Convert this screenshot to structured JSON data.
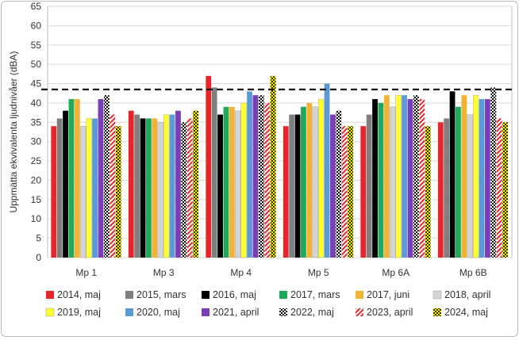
{
  "chart_data": {
    "type": "bar",
    "title": "",
    "xlabel": "",
    "ylabel": "Uppmätta ekvivalenta ljudnivåer (dBA)",
    "ylim": [
      0,
      65
    ],
    "yticks": [
      0,
      5,
      10,
      15,
      20,
      25,
      30,
      35,
      40,
      45,
      50,
      55,
      60,
      65
    ],
    "grid": true,
    "legend_position": "bottom",
    "categories": [
      "Mp 1",
      "Mp 3",
      "Mp 4",
      "Mp 5",
      "Mp 6A",
      "Mp 6B"
    ],
    "reference_line": 43.5,
    "series": [
      {
        "name": "2014, maj",
        "color": "#e8252b",
        "pattern": "solid",
        "values": [
          34,
          38,
          47,
          34,
          34,
          35
        ]
      },
      {
        "name": "2015, mars",
        "color": "#7f7f7f",
        "pattern": "solid",
        "values": [
          36,
          37,
          44,
          37,
          37,
          36
        ]
      },
      {
        "name": "2016, maj",
        "color": "#000000",
        "pattern": "solid",
        "values": [
          38,
          36,
          37,
          37,
          41,
          43
        ]
      },
      {
        "name": "2017, mars",
        "color": "#1fa95a",
        "pattern": "solid",
        "values": [
          41,
          36,
          39,
          39,
          40,
          39
        ]
      },
      {
        "name": "2017, juni",
        "color": "#f2b233",
        "pattern": "solid",
        "values": [
          41,
          36,
          39,
          40,
          42,
          42
        ]
      },
      {
        "name": "2018, april",
        "color": "#d4d4d4",
        "pattern": "solid",
        "values": [
          34,
          35,
          38,
          39,
          39,
          37
        ]
      },
      {
        "name": "2019, maj",
        "color": "#ffff33",
        "pattern": "solid",
        "values": [
          36,
          37,
          40,
          41,
          42,
          42
        ]
      },
      {
        "name": "2020, maj",
        "color": "#5b9bd5",
        "pattern": "solid",
        "values": [
          36,
          37,
          43,
          45,
          42,
          41
        ]
      },
      {
        "name": "2021, april",
        "color": "#7a3fb8",
        "pattern": "solid",
        "values": [
          41,
          38,
          42,
          37,
          41,
          41
        ]
      },
      {
        "name": "2022, maj",
        "color": "#000000",
        "pattern": "checker",
        "values": [
          42,
          35,
          42,
          38,
          42,
          44
        ]
      },
      {
        "name": "2023, april",
        "color": "#e8252b",
        "pattern": "diag",
        "values": [
          37,
          36,
          40,
          34,
          41,
          36
        ]
      },
      {
        "name": "2024, maj",
        "color": "#c6c000",
        "pattern": "checker-yellow",
        "values": [
          34,
          38,
          47,
          34,
          34,
          35
        ]
      }
    ]
  }
}
